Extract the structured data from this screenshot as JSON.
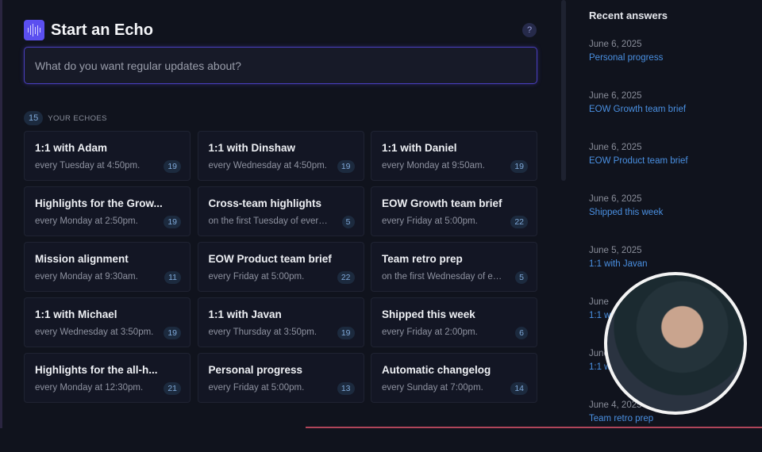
{
  "header": {
    "title": "Start an Echo",
    "help_label": "?"
  },
  "input": {
    "placeholder": "What do you want regular updates about?"
  },
  "echoes": {
    "count": "15",
    "label": "YOUR ECHOES",
    "items": [
      {
        "title": "1:1 with Adam",
        "schedule": "every Tuesday at 4:50pm.",
        "count": "19"
      },
      {
        "title": "1:1 with Dinshaw",
        "schedule": "every Wednesday at 4:50pm.",
        "count": "19"
      },
      {
        "title": "1:1 with Daniel",
        "schedule": "every Monday at 9:50am.",
        "count": "19"
      },
      {
        "title": "Highlights for the Grow...",
        "schedule": "every Monday at 2:50pm.",
        "count": "19"
      },
      {
        "title": "Cross-team highlights",
        "schedule": "on the first Tuesday of every month",
        "count": "5"
      },
      {
        "title": "EOW Growth team brief",
        "schedule": "every Friday at 5:00pm.",
        "count": "22"
      },
      {
        "title": "Mission alignment",
        "schedule": "every Monday at 9:30am.",
        "count": "11"
      },
      {
        "title": "EOW Product team brief",
        "schedule": "every Friday at 5:00pm.",
        "count": "22"
      },
      {
        "title": "Team retro prep",
        "schedule": "on the first Wednesday of every month",
        "count": "5"
      },
      {
        "title": "1:1 with Michael",
        "schedule": "every Wednesday at 3:50pm.",
        "count": "19"
      },
      {
        "title": "1:1 with Javan",
        "schedule": "every Thursday at 3:50pm.",
        "count": "19"
      },
      {
        "title": "Shipped this week",
        "schedule": "every Friday at 2:00pm.",
        "count": "6"
      },
      {
        "title": "Highlights for the all-h...",
        "schedule": "every Monday at 12:30pm.",
        "count": "21"
      },
      {
        "title": "Personal progress",
        "schedule": "every Friday at 5:00pm.",
        "count": "13"
      },
      {
        "title": "Automatic changelog",
        "schedule": "every Sunday at 7:00pm.",
        "count": "14"
      }
    ]
  },
  "recent": {
    "title": "Recent answers",
    "items": [
      {
        "date": "June 6, 2025",
        "name": "Personal progress"
      },
      {
        "date": "June 6, 2025",
        "name": "EOW Growth team brief"
      },
      {
        "date": "June 6, 2025",
        "name": "EOW Product team brief"
      },
      {
        "date": "June 6, 2025",
        "name": "Shipped this week"
      },
      {
        "date": "June 5, 2025",
        "name": "1:1 with Javan"
      },
      {
        "date": "June",
        "name": "1:1 w"
      },
      {
        "date": "June",
        "name": "1:1 w"
      },
      {
        "date": "June 4, 2025",
        "name": "Team retro prep"
      }
    ]
  },
  "colors": {
    "accent": "#5b4ff0",
    "link": "#4a90e2",
    "background": "#10131d"
  }
}
